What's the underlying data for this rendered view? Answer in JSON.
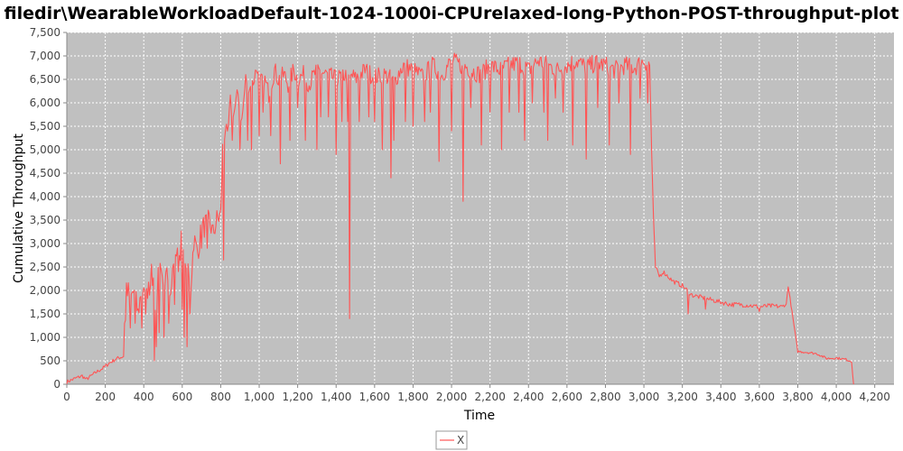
{
  "chart_data": {
    "type": "line",
    "title": "filedir\\WearableWorkloadDefault-1024-1000i-CPUrelaxed-long-Python-POST-throughput-plot",
    "xlabel": "Time",
    "ylabel": "Cumulative Throughput",
    "xlim": [
      0,
      4300
    ],
    "ylim": [
      0,
      7500
    ],
    "x_ticks": [
      0,
      200,
      400,
      600,
      800,
      1000,
      1200,
      1400,
      1600,
      1800,
      2000,
      2200,
      2400,
      2600,
      2800,
      3000,
      3200,
      3400,
      3600,
      3800,
      4000,
      4200
    ],
    "y_ticks": [
      0,
      500,
      1000,
      1500,
      2000,
      2500,
      3000,
      3500,
      4000,
      4500,
      5000,
      5500,
      6000,
      6500,
      7000,
      7500
    ],
    "x_tick_labels": [
      "0",
      "200",
      "400",
      "600",
      "800",
      "1,000",
      "1,200",
      "1,400",
      "1,600",
      "1,800",
      "2,000",
      "2,200",
      "2,400",
      "2,600",
      "2,800",
      "3,000",
      "3,200",
      "3,400",
      "3,600",
      "3,800",
      "4,000",
      "4,200"
    ],
    "y_tick_labels": [
      "0",
      "500",
      "1,000",
      "1,500",
      "2,000",
      "2,500",
      "3,000",
      "3,500",
      "4,000",
      "4,500",
      "5,000",
      "5,500",
      "6,000",
      "6,500",
      "7,000",
      "7,500"
    ],
    "grid": true,
    "legend_position": "bottom-center",
    "colors": {
      "series": "#ff5555",
      "plot_background": "#c0c0c0",
      "grid": "#ffffff"
    },
    "series": [
      {
        "name": "X",
        "x": [
          0,
          40,
          80,
          100,
          150,
          190,
          220,
          260,
          300,
          310,
          330,
          350,
          370,
          390,
          410,
          430,
          450,
          460,
          480,
          500,
          520,
          540,
          560,
          580,
          600,
          610,
          625,
          640,
          660,
          680,
          700,
          720,
          740,
          760,
          780,
          800,
          810,
          825,
          835,
          850,
          870,
          890,
          910,
          930,
          960,
          990,
          1000,
          1020,
          1050,
          1080,
          1100,
          1130,
          1150,
          1180,
          1200,
          1230,
          1260,
          1300,
          1350,
          1400,
          1440,
          1460,
          1470,
          1480,
          1500,
          1550,
          1600,
          1650,
          1690,
          1700,
          1720,
          1750,
          1800,
          1850,
          1900,
          1950,
          2000,
          2050,
          2060,
          2070,
          2100,
          2150,
          2200,
          2250,
          2300,
          2350,
          2400,
          2450,
          2500,
          2550,
          2600,
          2650,
          2700,
          2750,
          2800,
          2850,
          2900,
          2950,
          3000,
          3030,
          3040,
          3050,
          3060,
          3080,
          3100,
          3150,
          3200,
          3250,
          3300,
          3350,
          3400,
          3450,
          3500,
          3550,
          3600,
          3650,
          3700,
          3720,
          3730,
          3740,
          3750,
          3800,
          3850,
          3900,
          3950,
          4000,
          4050,
          4070,
          4080,
          4090
        ],
        "values": [
          50,
          120,
          180,
          100,
          250,
          350,
          450,
          550,
          600,
          2100,
          1800,
          2000,
          1500,
          2100,
          1700,
          2400,
          2200,
          1600,
          2500,
          2000,
          2700,
          1800,
          3000,
          2600,
          3200,
          2100,
          2900,
          1800,
          3100,
          2800,
          3300,
          3400,
          3500,
          3200,
          3500,
          3600,
          5000,
          5500,
          5200,
          6000,
          5800,
          6200,
          5600,
          6500,
          6300,
          6800,
          6300,
          6600,
          6200,
          6700,
          6500,
          6600,
          6400,
          6700,
          6500,
          6600,
          6400,
          6700,
          6600,
          6500,
          6600,
          6550,
          6400,
          6600,
          6500,
          6700,
          6550,
          6600,
          6500,
          6400,
          6600,
          6800,
          6700,
          6550,
          6800,
          6600,
          6900,
          6800,
          6600,
          6800,
          6700,
          6600,
          6800,
          6700,
          6800,
          6850,
          6700,
          6900,
          6800,
          6700,
          6800,
          6900,
          6750,
          6850,
          6800,
          6700,
          6800,
          6750,
          6900,
          6800,
          5000,
          3500,
          2500,
          2300,
          2400,
          2200,
          2100,
          1900,
          1850,
          1800,
          1750,
          1700,
          1700,
          1680,
          1650,
          1670,
          1660,
          1650,
          1700,
          1700,
          2100,
          700,
          680,
          650,
          550,
          560,
          530,
          500,
          480,
          0
        ]
      }
    ],
    "dips": [
      {
        "x": 300,
        "y": 1300
      },
      {
        "x": 330,
        "y": 1200
      },
      {
        "x": 355,
        "y": 1300
      },
      {
        "x": 390,
        "y": 1200
      },
      {
        "x": 430,
        "y": 1900
      },
      {
        "x": 455,
        "y": 500
      },
      {
        "x": 465,
        "y": 800
      },
      {
        "x": 480,
        "y": 1100
      },
      {
        "x": 505,
        "y": 1000
      },
      {
        "x": 530,
        "y": 1300
      },
      {
        "x": 560,
        "y": 1700
      },
      {
        "x": 600,
        "y": 1600
      },
      {
        "x": 612,
        "y": 1000
      },
      {
        "x": 625,
        "y": 800
      },
      {
        "x": 640,
        "y": 1500
      },
      {
        "x": 700,
        "y": 2900
      },
      {
        "x": 730,
        "y": 2900
      },
      {
        "x": 815,
        "y": 2650
      },
      {
        "x": 860,
        "y": 5200
      },
      {
        "x": 900,
        "y": 5000
      },
      {
        "x": 940,
        "y": 5200
      },
      {
        "x": 960,
        "y": 5000
      },
      {
        "x": 1000,
        "y": 5300
      },
      {
        "x": 1020,
        "y": 5800
      },
      {
        "x": 1060,
        "y": 5300
      },
      {
        "x": 1110,
        "y": 4700
      },
      {
        "x": 1160,
        "y": 5200
      },
      {
        "x": 1200,
        "y": 5900
      },
      {
        "x": 1240,
        "y": 5200
      },
      {
        "x": 1300,
        "y": 5000
      },
      {
        "x": 1320,
        "y": 5700
      },
      {
        "x": 1360,
        "y": 5700
      },
      {
        "x": 1400,
        "y": 4900
      },
      {
        "x": 1430,
        "y": 5600
      },
      {
        "x": 1460,
        "y": 5600
      },
      {
        "x": 1470,
        "y": 1400
      },
      {
        "x": 1520,
        "y": 5600
      },
      {
        "x": 1570,
        "y": 5700
      },
      {
        "x": 1600,
        "y": 5600
      },
      {
        "x": 1640,
        "y": 5000
      },
      {
        "x": 1685,
        "y": 4400
      },
      {
        "x": 1700,
        "y": 5200
      },
      {
        "x": 1760,
        "y": 5600
      },
      {
        "x": 1800,
        "y": 5500
      },
      {
        "x": 1860,
        "y": 5600
      },
      {
        "x": 1890,
        "y": 5800
      },
      {
        "x": 1935,
        "y": 4750
      },
      {
        "x": 2000,
        "y": 5400
      },
      {
        "x": 2060,
        "y": 3900
      },
      {
        "x": 2100,
        "y": 5900
      },
      {
        "x": 2155,
        "y": 5100
      },
      {
        "x": 2200,
        "y": 5800
      },
      {
        "x": 2260,
        "y": 5000
      },
      {
        "x": 2300,
        "y": 5800
      },
      {
        "x": 2350,
        "y": 5800
      },
      {
        "x": 2380,
        "y": 5200
      },
      {
        "x": 2420,
        "y": 6000
      },
      {
        "x": 2480,
        "y": 5800
      },
      {
        "x": 2500,
        "y": 5200
      },
      {
        "x": 2540,
        "y": 6100
      },
      {
        "x": 2580,
        "y": 5800
      },
      {
        "x": 2630,
        "y": 5100
      },
      {
        "x": 2700,
        "y": 4800
      },
      {
        "x": 2760,
        "y": 5900
      },
      {
        "x": 2820,
        "y": 5100
      },
      {
        "x": 2870,
        "y": 6000
      },
      {
        "x": 2930,
        "y": 4900
      },
      {
        "x": 2980,
        "y": 6100
      },
      {
        "x": 3020,
        "y": 6000
      },
      {
        "x": 3230,
        "y": 1500
      },
      {
        "x": 3320,
        "y": 1600
      },
      {
        "x": 3600,
        "y": 1550
      }
    ]
  }
}
